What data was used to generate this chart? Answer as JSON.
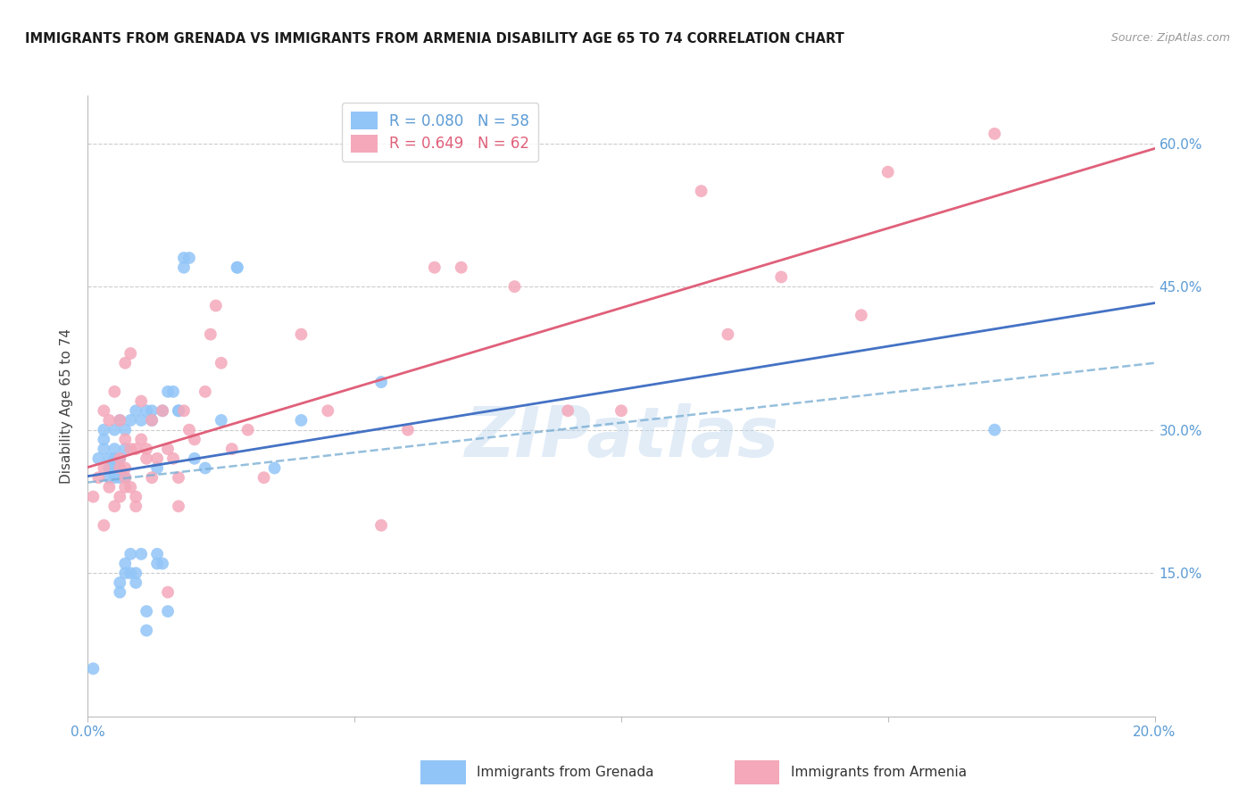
{
  "title": "IMMIGRANTS FROM GRENADA VS IMMIGRANTS FROM ARMENIA DISABILITY AGE 65 TO 74 CORRELATION CHART",
  "source": "Source: ZipAtlas.com",
  "ylabel": "Disability Age 65 to 74",
  "xlim": [
    0.0,
    0.2
  ],
  "ylim": [
    0.0,
    0.65
  ],
  "grenada_color": "#92C5F7",
  "armenia_color": "#F4A8BA",
  "grenada_line_color": "#4472C4",
  "armenia_line_color": "#E0607A",
  "dashed_line_color": "#7BAFD4",
  "grenada_R": 0.08,
  "grenada_N": 58,
  "armenia_R": 0.649,
  "armenia_N": 62,
  "watermark": "ZIPatlas",
  "background_color": "#ffffff",
  "tick_color": "#5B9BD5",
  "grid_color": "#CCCCCC",
  "grenada_scatter_x": [
    0.001,
    0.002,
    0.003,
    0.003,
    0.003,
    0.004,
    0.004,
    0.004,
    0.005,
    0.005,
    0.005,
    0.005,
    0.005,
    0.006,
    0.006,
    0.006,
    0.006,
    0.006,
    0.007,
    0.007,
    0.007,
    0.007,
    0.007,
    0.008,
    0.008,
    0.008,
    0.009,
    0.009,
    0.009,
    0.01,
    0.01,
    0.011,
    0.011,
    0.011,
    0.012,
    0.012,
    0.013,
    0.013,
    0.013,
    0.014,
    0.014,
    0.015,
    0.015,
    0.016,
    0.017,
    0.017,
    0.018,
    0.018,
    0.019,
    0.02,
    0.022,
    0.025,
    0.028,
    0.028,
    0.035,
    0.04,
    0.055,
    0.17
  ],
  "grenada_scatter_y": [
    0.05,
    0.27,
    0.28,
    0.29,
    0.3,
    0.25,
    0.26,
    0.27,
    0.25,
    0.26,
    0.27,
    0.28,
    0.3,
    0.13,
    0.14,
    0.25,
    0.27,
    0.31,
    0.15,
    0.16,
    0.25,
    0.28,
    0.3,
    0.15,
    0.17,
    0.31,
    0.14,
    0.15,
    0.32,
    0.17,
    0.31,
    0.09,
    0.11,
    0.32,
    0.31,
    0.32,
    0.16,
    0.17,
    0.26,
    0.16,
    0.32,
    0.11,
    0.34,
    0.34,
    0.32,
    0.32,
    0.47,
    0.48,
    0.48,
    0.27,
    0.26,
    0.31,
    0.47,
    0.47,
    0.26,
    0.31,
    0.35,
    0.3
  ],
  "armenia_scatter_x": [
    0.001,
    0.002,
    0.003,
    0.003,
    0.003,
    0.004,
    0.004,
    0.005,
    0.005,
    0.006,
    0.006,
    0.006,
    0.006,
    0.007,
    0.007,
    0.007,
    0.007,
    0.007,
    0.008,
    0.008,
    0.008,
    0.009,
    0.009,
    0.009,
    0.01,
    0.01,
    0.011,
    0.011,
    0.012,
    0.012,
    0.013,
    0.014,
    0.015,
    0.015,
    0.016,
    0.017,
    0.017,
    0.018,
    0.019,
    0.02,
    0.022,
    0.023,
    0.024,
    0.025,
    0.027,
    0.03,
    0.033,
    0.04,
    0.045,
    0.055,
    0.06,
    0.065,
    0.07,
    0.08,
    0.09,
    0.1,
    0.115,
    0.12,
    0.13,
    0.145,
    0.15,
    0.17
  ],
  "armenia_scatter_y": [
    0.23,
    0.25,
    0.2,
    0.26,
    0.32,
    0.24,
    0.31,
    0.22,
    0.34,
    0.23,
    0.26,
    0.27,
    0.31,
    0.24,
    0.25,
    0.26,
    0.29,
    0.37,
    0.24,
    0.28,
    0.38,
    0.22,
    0.23,
    0.28,
    0.29,
    0.33,
    0.27,
    0.28,
    0.25,
    0.31,
    0.27,
    0.32,
    0.13,
    0.28,
    0.27,
    0.22,
    0.25,
    0.32,
    0.3,
    0.29,
    0.34,
    0.4,
    0.43,
    0.37,
    0.28,
    0.3,
    0.25,
    0.4,
    0.32,
    0.2,
    0.3,
    0.47,
    0.47,
    0.45,
    0.32,
    0.32,
    0.55,
    0.4,
    0.46,
    0.42,
    0.57,
    0.61
  ],
  "legend_grenada_label": "Immigrants from Grenada",
  "legend_armenia_label": "Immigrants from Armenia"
}
